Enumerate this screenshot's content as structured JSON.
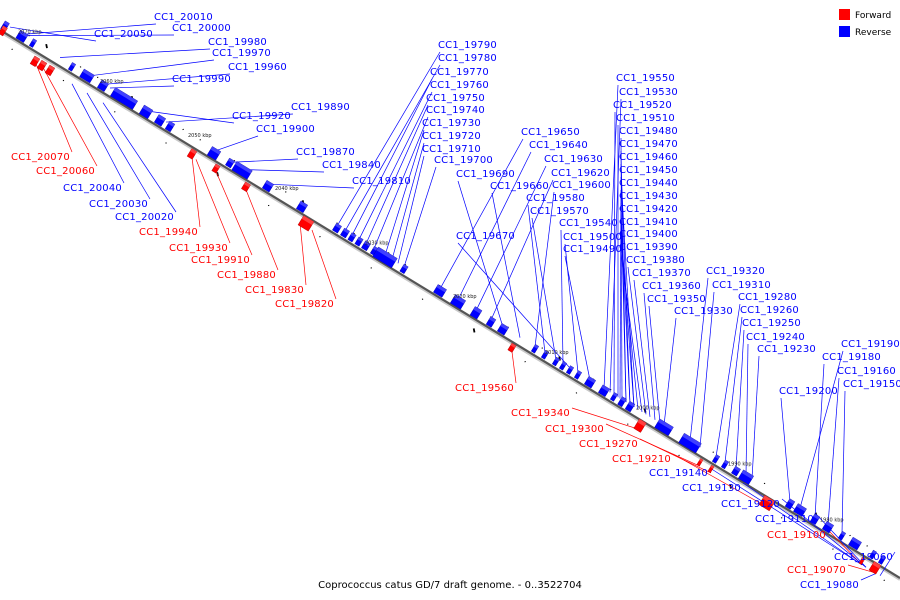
{
  "caption": "Coprococcus catus GD/7 draft genome. - 0..3522704",
  "legend": [
    {
      "label": "Forward",
      "color": "#ff0000"
    },
    {
      "label": "Reverse",
      "color": "#0000ff"
    }
  ],
  "colors": {
    "forward": "#ff0000",
    "reverse": "#0000ff",
    "track": "#555555"
  },
  "kbp_ticks": [
    "2070 kbp",
    "2060 kbp",
    "2050 kbp",
    "2040 kbp",
    "2030 kbp",
    "2020 kbp",
    "2010 kbp",
    "2000 kbp",
    "1990 kbp",
    "1980 kbp"
  ],
  "genes_upper": [
    "CC1_20010",
    "CC1_20050",
    "CC1_20000",
    "CC1_19980",
    "CC1_19970",
    "CC1_19960",
    "CC1_19990",
    "CC1_19920",
    "CC1_19890",
    "CC1_19900",
    "CC1_19870",
    "CC1_19840",
    "CC1_19810",
    "CC1_19790",
    "CC1_19780",
    "CC1_19770",
    "CC1_19760",
    "CC1_19750",
    "CC1_19740",
    "CC1_19730",
    "CC1_19720",
    "CC1_19710",
    "CC1_19700",
    "CC1_19650",
    "CC1_19640",
    "CC1_19630",
    "CC1_19620",
    "CC1_19690",
    "CC1_19660",
    "CC1_19600",
    "CC1_19580",
    "CC1_19570",
    "CC1_19540",
    "CC1_19670",
    "CC1_19500",
    "CC1_19490",
    "CC1_19550",
    "CC1_19530",
    "CC1_19520",
    "CC1_19510",
    "CC1_19480",
    "CC1_19470",
    "CC1_19460",
    "CC1_19450",
    "CC1_19440",
    "CC1_19430",
    "CC1_19420",
    "CC1_19410",
    "CC1_19400",
    "CC1_19390",
    "CC1_19380",
    "CC1_19370",
    "CC1_19360",
    "CC1_19350",
    "CC1_19330",
    "CC1_19320",
    "CC1_19310",
    "CC1_19280",
    "CC1_19260",
    "CC1_19250",
    "CC1_19240",
    "CC1_19230",
    "CC1_19200",
    "CC1_19190",
    "CC1_19180",
    "CC1_19160",
    "CC1_19150"
  ],
  "genes_lower_forward": [
    "CC1_20070",
    "CC1_20060",
    "CC1_19940",
    "CC1_19930",
    "CC1_19910",
    "CC1_19880",
    "CC1_19830",
    "CC1_19820",
    "CC1_19560",
    "CC1_19340",
    "CC1_19300",
    "CC1_19270",
    "CC1_19210",
    "CC1_19100",
    "CC1_19070"
  ],
  "genes_lower_reverse": [
    "CC1_20040",
    "CC1_20030",
    "CC1_20020",
    "CC1_19140",
    "CC1_19130",
    "CC1_19120",
    "CC1_19110",
    "CC1_19060",
    "CC1_19080"
  ]
}
